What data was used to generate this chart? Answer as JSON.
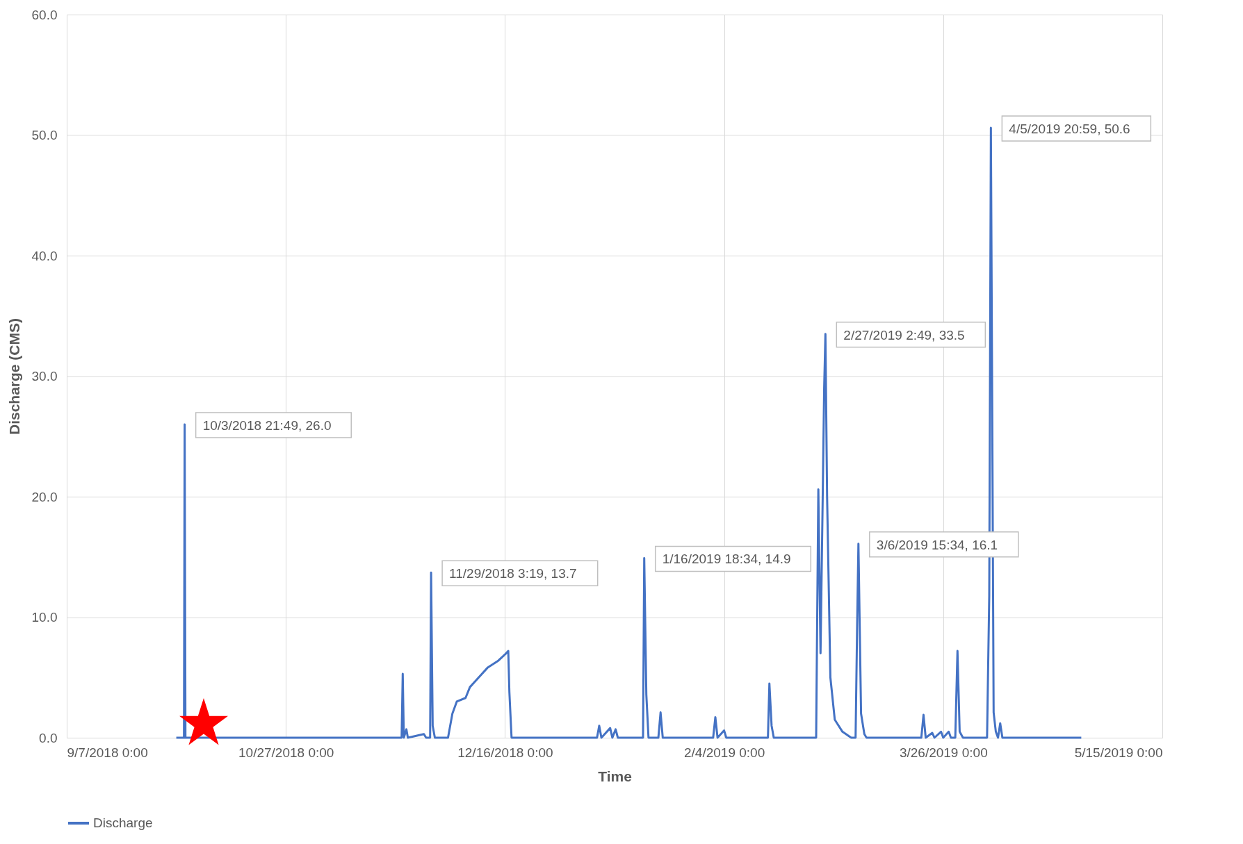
{
  "chart_data": {
    "type": "line",
    "xlabel": "Time",
    "ylabel": "Discharge (CMS)",
    "xlim": [
      "2018-09-07",
      "2019-05-15"
    ],
    "xticks": [
      {
        "value": "2018-09-07",
        "label": "9/7/2018 0:00"
      },
      {
        "value": "2018-10-27",
        "label": "10/27/2018 0:00"
      },
      {
        "value": "2018-12-16",
        "label": "12/16/2018 0:00"
      },
      {
        "value": "2019-02-04",
        "label": "2/4/2019 0:00"
      },
      {
        "value": "2019-03-26",
        "label": "3/26/2019 0:00"
      },
      {
        "value": "2019-05-15",
        "label": "5/15/2019 0:00"
      }
    ],
    "ylim": [
      0,
      60
    ],
    "yticks": [
      {
        "value": 0,
        "label": "0.0"
      },
      {
        "value": 10,
        "label": "10.0"
      },
      {
        "value": 20,
        "label": "20.0"
      },
      {
        "value": 30,
        "label": "30.0"
      },
      {
        "value": 40,
        "label": "40.0"
      },
      {
        "value": 50,
        "label": "50.0"
      },
      {
        "value": 60,
        "label": "60.0"
      }
    ],
    "grid": true,
    "legend": "bottom",
    "line_style": "solid",
    "marker": "none",
    "x": [
      "2018-10-02T00:00",
      "2018-10-03T18:00",
      "2018-10-03T21:49",
      "2018-10-04T02:00",
      "2018-11-22T10:00",
      "2018-11-22T16:00",
      "2018-11-22T22:00",
      "2018-11-23T12:00",
      "2018-11-23T20:00",
      "2018-11-27T12:00",
      "2018-11-28T00:00",
      "2018-11-28T22:00",
      "2018-11-29T03:19",
      "2018-11-29T12:00",
      "2018-11-30T00:00",
      "2018-12-03T00:00",
      "2018-12-04T00:00",
      "2018-12-05T00:00",
      "2018-12-07T00:00",
      "2018-12-08T00:00",
      "2018-12-10T00:00",
      "2018-12-12T00:00",
      "2018-12-14T12:00",
      "2018-12-16T06:00",
      "2018-12-16T18:00",
      "2018-12-17T00:00",
      "2018-12-17T12:00",
      "2019-01-06T00:00",
      "2019-01-06T12:00",
      "2019-01-07T00:00",
      "2019-01-09T00:00",
      "2019-01-09T12:00",
      "2019-01-10T06:00",
      "2019-01-10T18:00",
      "2019-01-16T12:00",
      "2019-01-16T18:34",
      "2019-01-17T06:00",
      "2019-01-17T18:00",
      "2019-01-20T00:00",
      "2019-01-20T12:00",
      "2019-01-21T00:00",
      "2019-02-01T12:00",
      "2019-02-02T00:00",
      "2019-02-02T12:00",
      "2019-02-04T00:00",
      "2019-02-04T12:00",
      "2019-02-14T00:00",
      "2019-02-14T08:00",
      "2019-02-14T20:00",
      "2019-02-15T08:00",
      "2019-02-25T00:00",
      "2019-02-25T12:00",
      "2019-02-26T00:00",
      "2019-02-26T12:00",
      "2019-02-26T20:00",
      "2019-02-27T02:49",
      "2019-02-27T12:00",
      "2019-02-28T06:00",
      "2019-03-01T06:00",
      "2019-03-03T00:00",
      "2019-03-05T00:00",
      "2019-03-06T00:00",
      "2019-03-06T08:00",
      "2019-03-06T15:34",
      "2019-03-07T06:00",
      "2019-03-08T00:00",
      "2019-03-08T12:00",
      "2019-03-21T00:00",
      "2019-03-21T12:00",
      "2019-03-22T00:00",
      "2019-03-23T12:00",
      "2019-03-24T00:00",
      "2019-03-25T12:00",
      "2019-03-26T00:00",
      "2019-03-27T06:00",
      "2019-03-27T18:00",
      "2019-03-28T18:00",
      "2019-03-29T06:00",
      "2019-03-29T18:00",
      "2019-03-30T12:00",
      "2019-04-05T00:00",
      "2019-04-05T12:00",
      "2019-04-05T20:59",
      "2019-04-06T12:00",
      "2019-04-07T00:00",
      "2019-04-07T12:00",
      "2019-04-08T00:00",
      "2019-04-08T12:00",
      "2019-04-26T12:00"
    ],
    "series": [
      {
        "name": "Discharge",
        "color": "#4472c4",
        "values": [
          0,
          0,
          26.0,
          0,
          0,
          5.3,
          0,
          0.7,
          0,
          0.3,
          0,
          0,
          13.7,
          1.0,
          0,
          0,
          2.0,
          3.0,
          3.3,
          4.2,
          5.0,
          5.8,
          6.4,
          7.0,
          7.2,
          3.8,
          0,
          0,
          1.0,
          0,
          0.8,
          0,
          0.7,
          0,
          0,
          14.9,
          3.6,
          0,
          0,
          2.1,
          0,
          0,
          1.7,
          0,
          0.6,
          0,
          0,
          4.5,
          1.0,
          0,
          0,
          20.6,
          7.0,
          20.0,
          29.0,
          33.5,
          20.0,
          5.0,
          1.5,
          0.5,
          0,
          0,
          8.8,
          16.1,
          2.0,
          0.3,
          0,
          0,
          1.9,
          0,
          0.4,
          0,
          0.5,
          0,
          0.5,
          0,
          0,
          7.2,
          0.5,
          0,
          0,
          11.8,
          50.6,
          2.1,
          0.5,
          0,
          1.2,
          0,
          0
        ]
      }
    ],
    "annotations": [
      {
        "text": "10/3/2018 21:49, 26.0",
        "x": "2018-10-03T21:49",
        "y": 26.0
      },
      {
        "text": "11/29/2018 3:19, 13.7",
        "x": "2018-11-29T03:19",
        "y": 13.7
      },
      {
        "text": "1/16/2019 18:34, 14.9",
        "x": "2019-01-16T18:34",
        "y": 14.9
      },
      {
        "text": "2/27/2019 2:49, 33.5",
        "x": "2019-02-27T02:49",
        "y": 33.5
      },
      {
        "text": "3/6/2019 15:34, 16.1",
        "x": "2019-03-06T15:34",
        "y": 16.1
      },
      {
        "text": "4/5/2019 20:59, 50.6",
        "x": "2019-04-05T20:59",
        "y": 50.6
      }
    ]
  }
}
